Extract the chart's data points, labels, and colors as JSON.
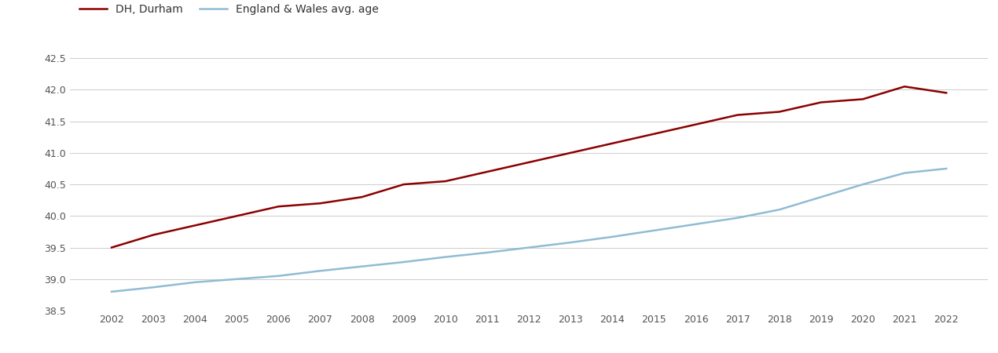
{
  "years": [
    2002,
    2003,
    2004,
    2005,
    2006,
    2007,
    2008,
    2009,
    2010,
    2011,
    2012,
    2013,
    2014,
    2015,
    2016,
    2017,
    2018,
    2019,
    2020,
    2021,
    2022
  ],
  "durham": [
    39.5,
    39.7,
    39.85,
    40.0,
    40.15,
    40.2,
    40.3,
    40.5,
    40.55,
    40.7,
    40.85,
    41.0,
    41.15,
    41.3,
    41.45,
    41.6,
    41.65,
    41.8,
    41.85,
    42.05,
    41.95
  ],
  "england_wales": [
    38.8,
    38.87,
    38.95,
    39.0,
    39.05,
    39.13,
    39.2,
    39.27,
    39.35,
    39.42,
    39.5,
    39.58,
    39.67,
    39.77,
    39.87,
    39.97,
    40.1,
    40.3,
    40.5,
    40.68,
    40.75
  ],
  "durham_color": "#8B0000",
  "ew_color": "#90bcd4",
  "background_color": "#ffffff",
  "grid_color": "#cccccc",
  "legend_durham": "DH, Durham",
  "legend_ew": "England & Wales avg. age",
  "ylim": [
    38.5,
    42.75
  ],
  "yticks": [
    38.5,
    39.0,
    39.5,
    40.0,
    40.5,
    41.0,
    41.5,
    42.0,
    42.5
  ],
  "line_width": 1.8
}
